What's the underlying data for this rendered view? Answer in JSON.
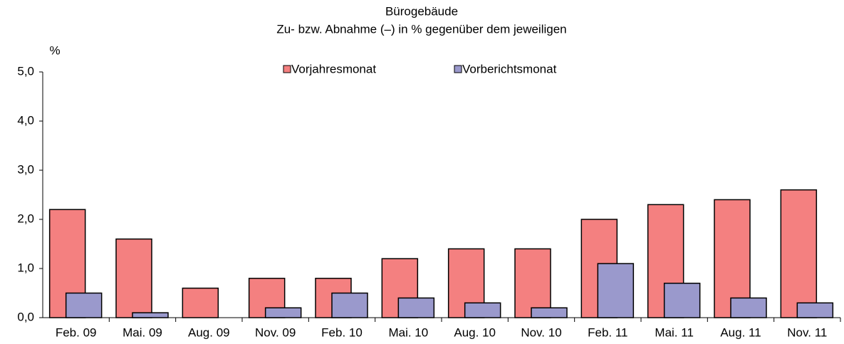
{
  "chart_data": {
    "type": "bar",
    "title": "Bürogebäude",
    "subtitle": "Zu- bzw. Abnahme (–) in %  gegenüber dem jeweiligen",
    "y_label": "%",
    "categories": [
      "Feb. 09",
      "Mai. 09",
      "Aug. 09",
      "Nov. 09",
      "Feb. 10",
      "Mai. 10",
      "Aug. 10",
      "Nov. 10",
      "Feb. 11",
      "Mai. 11",
      "Aug. 11",
      "Nov. 11"
    ],
    "series": [
      {
        "name": "Vorjahresmonat",
        "color": "#f48080",
        "values": [
          2.2,
          1.6,
          0.6,
          0.8,
          0.8,
          1.2,
          1.4,
          1.4,
          2.0,
          2.3,
          2.4,
          2.6
        ]
      },
      {
        "name": "Vorberichtsmonat",
        "color": "#9a99cc",
        "values": [
          0.5,
          0.1,
          0.0,
          0.2,
          0.5,
          0.4,
          0.3,
          0.2,
          1.1,
          0.7,
          0.4,
          0.3
        ]
      }
    ],
    "ylim": [
      0,
      5
    ],
    "yticks": [
      {
        "value": 0,
        "label": "0,0"
      },
      {
        "value": 1,
        "label": "1,0"
      },
      {
        "value": 2,
        "label": "2,0"
      },
      {
        "value": 3,
        "label": "3,0"
      },
      {
        "value": 4,
        "label": "4,0"
      },
      {
        "value": 5,
        "label": "5,0"
      }
    ],
    "grid": false,
    "legend": "top"
  }
}
